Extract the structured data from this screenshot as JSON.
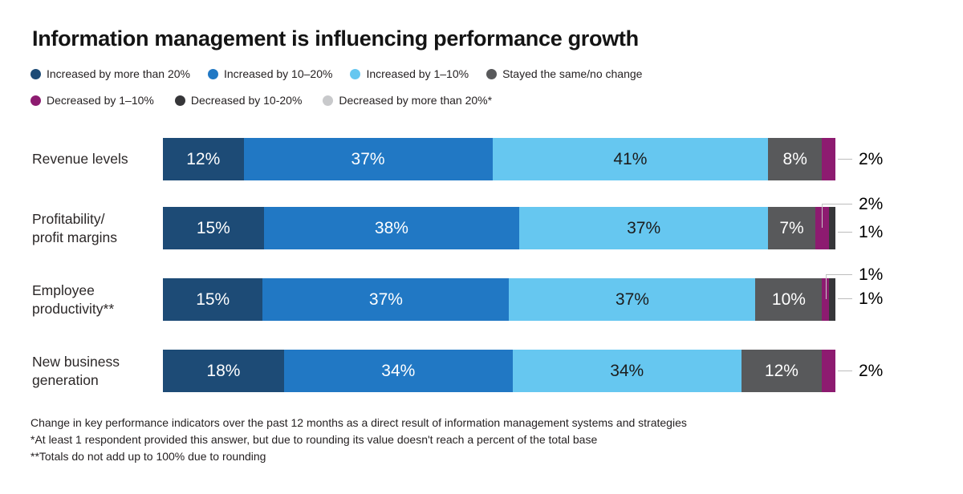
{
  "title": "Information management is influencing performance growth",
  "footnotes": [
    "Change in key performance indicators over the past 12 months as a direct result of information management systems and strategies",
    "*At least 1 respondent provided this answer, but due to rounding its value doesn't reach a percent of the total base",
    "**Totals do not add up to 100% due to rounding"
  ],
  "chart_data": {
    "type": "bar",
    "stacked": true,
    "orientation": "horizontal",
    "title": "Information management is influencing performance growth",
    "unit": "%",
    "axis": {
      "x_range": [
        0,
        100
      ],
      "grid": false
    },
    "legend_position": "top",
    "series": [
      {
        "name": "Increased by more than 20%",
        "color": "#1d4b76"
      },
      {
        "name": "Increased by 10–20%",
        "color": "#2178c4"
      },
      {
        "name": "Increased by 1–10%",
        "color": "#66c7f0"
      },
      {
        "name": "Stayed the same/no change",
        "color": "#58595b"
      },
      {
        "name": "Decreased by 1–10%",
        "color": "#8d1b70"
      },
      {
        "name": "Decreased by 10-20%",
        "color": "#363639"
      },
      {
        "name": "Decreased by more than 20%*",
        "color": "#c8c9cb"
      }
    ],
    "legend_rows": [
      [
        0,
        1,
        2,
        3
      ],
      [
        4,
        5,
        6
      ]
    ],
    "rows": [
      {
        "category": "Revenue levels",
        "label_lines": [
          "Revenue levels"
        ],
        "segments": [
          {
            "series": 0,
            "value": 12,
            "label": "12%",
            "label_color": "#ffffff"
          },
          {
            "series": 1,
            "value": 37,
            "label": "37%",
            "label_color": "#ffffff"
          },
          {
            "series": 2,
            "value": 41,
            "label": "41%",
            "label_color": "#1c1c1c"
          },
          {
            "series": 3,
            "value": 8,
            "label": "8%",
            "label_color": "#ffffff"
          },
          {
            "series": 4,
            "value": 2
          }
        ],
        "callouts": [
          {
            "text": "2%",
            "segment": 4,
            "line": "straight",
            "offset_y": 26.5
          }
        ]
      },
      {
        "category": "Profitability/profit margins",
        "label_lines": [
          "Profitability/",
          "profit margins"
        ],
        "segments": [
          {
            "series": 0,
            "value": 15,
            "label": "15%",
            "label_color": "#ffffff"
          },
          {
            "series": 1,
            "value": 38,
            "label": "38%",
            "label_color": "#ffffff"
          },
          {
            "series": 2,
            "value": 37,
            "label": "37%",
            "label_color": "#1c1c1c"
          },
          {
            "series": 3,
            "value": 7,
            "label": "7%",
            "label_color": "#ffffff"
          },
          {
            "series": 4,
            "value": 2
          },
          {
            "series": 5,
            "value": 1
          }
        ],
        "callouts": [
          {
            "text": "2%",
            "segment": 4,
            "line": "elbow",
            "offset_y": -3
          },
          {
            "text": "1%",
            "segment": 5,
            "line": "straight",
            "offset_y": 32
          }
        ]
      },
      {
        "category": "Employee productivity**",
        "label_lines": [
          "Employee",
          "productivity**"
        ],
        "segments": [
          {
            "series": 0,
            "value": 15,
            "label": "15%",
            "label_color": "#ffffff"
          },
          {
            "series": 1,
            "value": 37,
            "label": "37%",
            "label_color": "#ffffff"
          },
          {
            "series": 2,
            "value": 37,
            "label": "37%",
            "label_color": "#1c1c1c"
          },
          {
            "series": 3,
            "value": 10,
            "label": "10%",
            "label_color": "#ffffff"
          },
          {
            "series": 4,
            "value": 1
          },
          {
            "series": 5,
            "value": 1
          }
        ],
        "callouts": [
          {
            "text": "1%",
            "segment": 4,
            "line": "elbow",
            "offset_y": -4
          },
          {
            "text": "1%",
            "segment": 5,
            "line": "straight",
            "offset_y": 26
          }
        ]
      },
      {
        "category": "New business generation",
        "label_lines": [
          "New business",
          "generation"
        ],
        "segments": [
          {
            "series": 0,
            "value": 18,
            "label": "18%",
            "label_color": "#ffffff"
          },
          {
            "series": 1,
            "value": 34,
            "label": "34%",
            "label_color": "#ffffff"
          },
          {
            "series": 2,
            "value": 34,
            "label": "34%",
            "label_color": "#1c1c1c"
          },
          {
            "series": 3,
            "value": 12,
            "label": "12%",
            "label_color": "#ffffff"
          },
          {
            "series": 4,
            "value": 2
          }
        ],
        "callouts": [
          {
            "text": "2%",
            "segment": 4,
            "line": "straight",
            "offset_y": 26.5
          }
        ]
      }
    ]
  }
}
